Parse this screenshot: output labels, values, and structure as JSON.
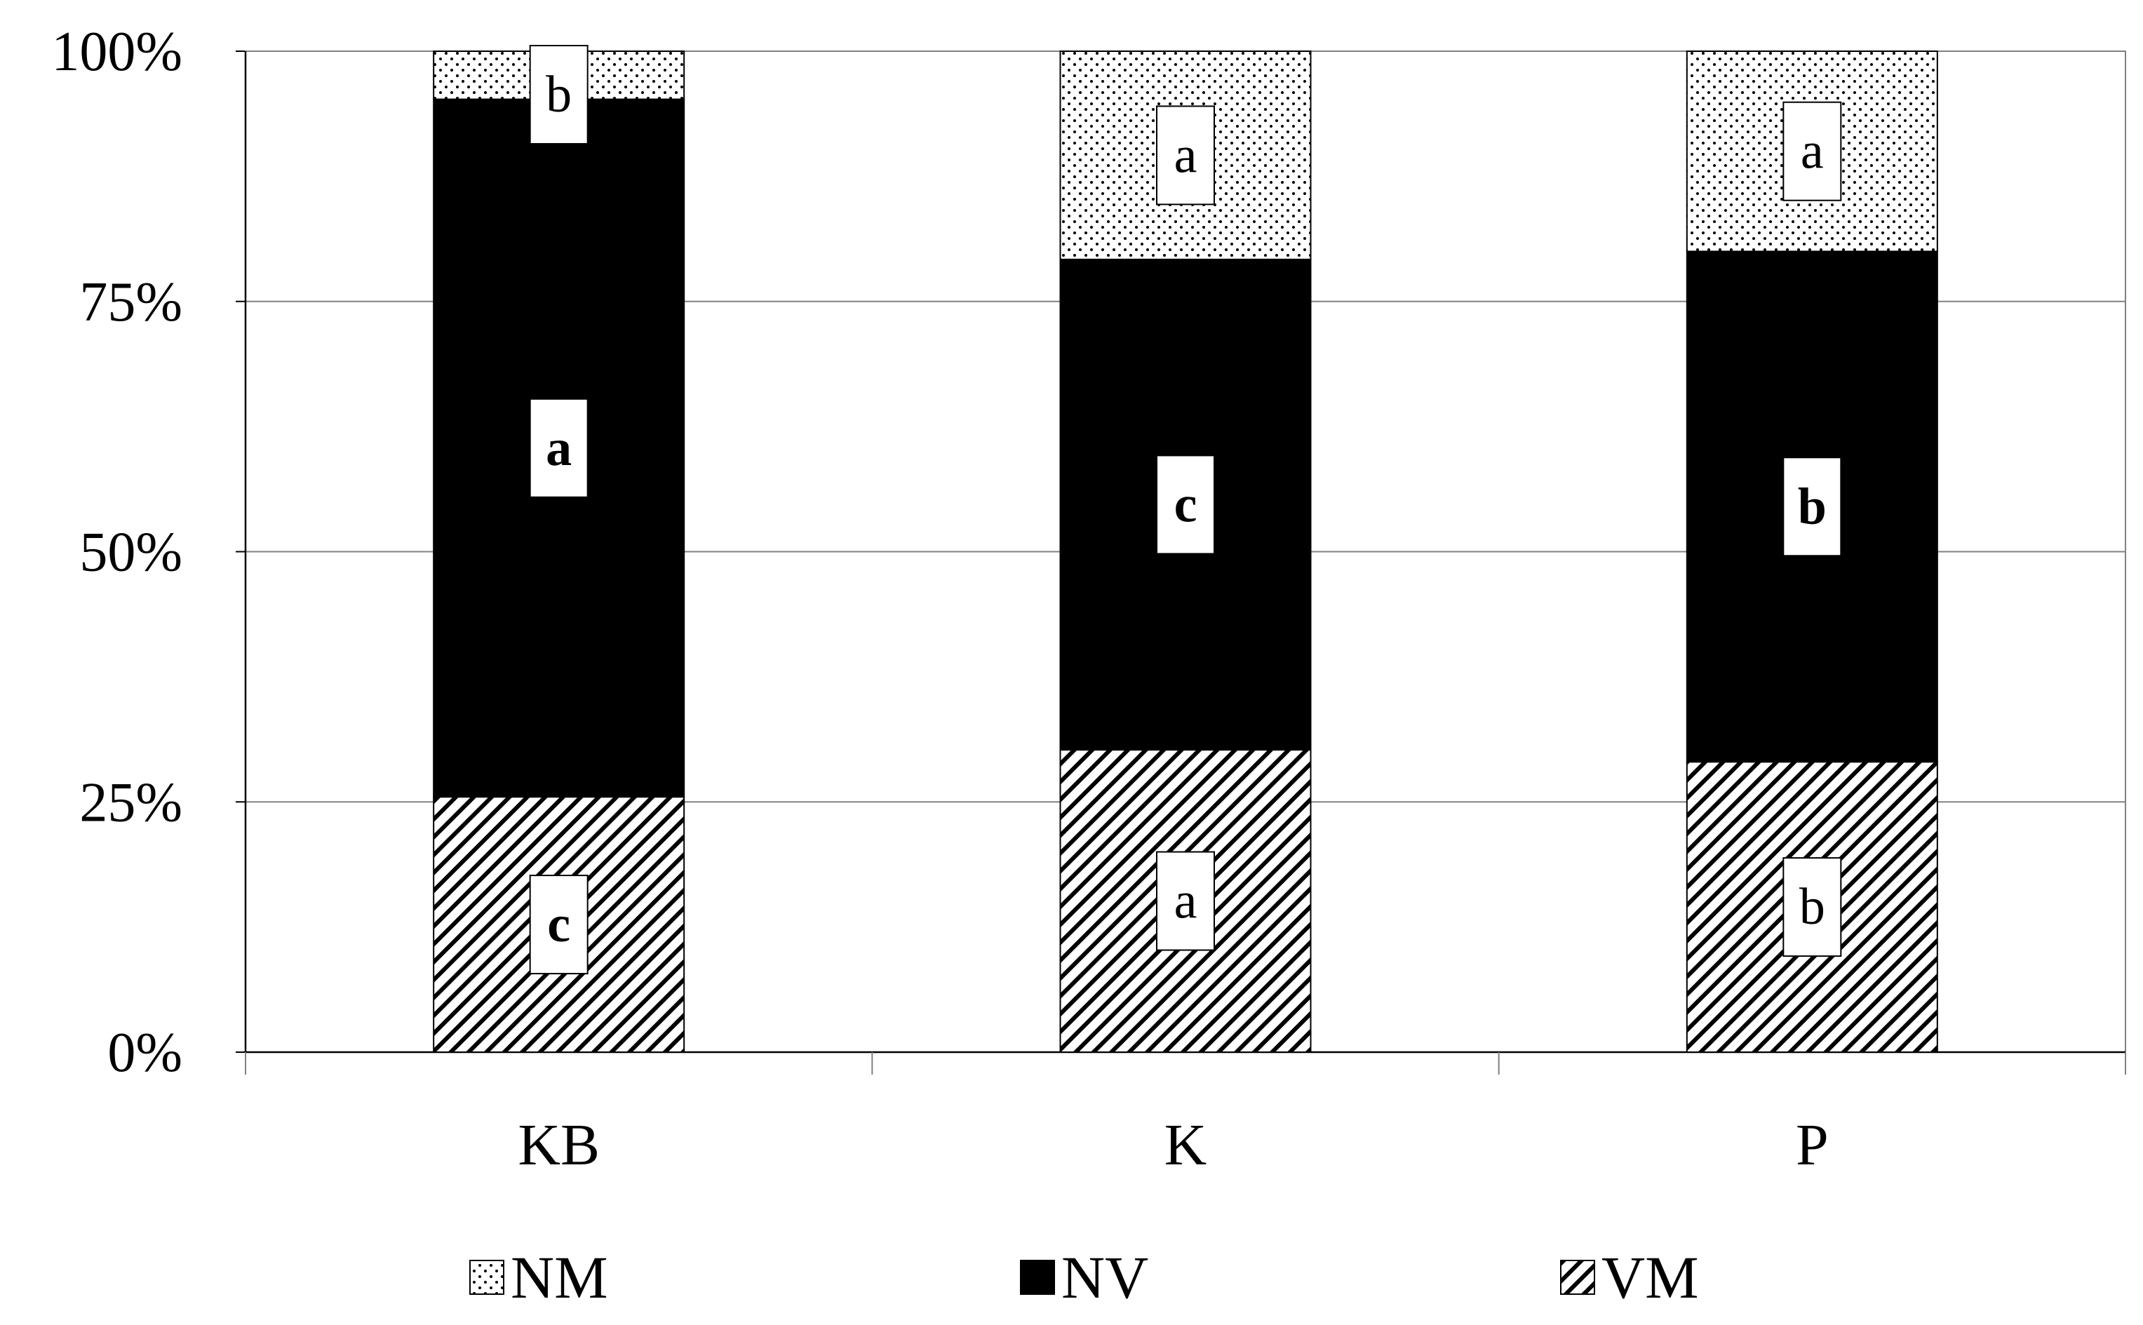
{
  "chart_data": {
    "type": "bar",
    "stacked": true,
    "categories": [
      "KB",
      "K",
      "P"
    ],
    "series": [
      {
        "name": "VM",
        "pattern": "diagonal-hatch",
        "values": [
          25.5,
          30.2,
          29.0
        ],
        "letters": [
          "c",
          "a",
          "b"
        ],
        "letters_bold": [
          true,
          false,
          false
        ]
      },
      {
        "name": "NV",
        "pattern": "solid-black",
        "values": [
          69.7,
          49.0,
          51.0
        ],
        "letters": [
          "a",
          "c",
          "b"
        ],
        "letters_bold": [
          true,
          true,
          true
        ]
      },
      {
        "name": "NM",
        "pattern": "dotted",
        "values": [
          4.8,
          20.8,
          20.0
        ],
        "letters": [
          "b",
          "a",
          "a"
        ],
        "letters_bold": [
          false,
          false,
          false
        ]
      }
    ],
    "ylim": [
      0,
      100
    ],
    "yticks": [
      "0%",
      "25%",
      "50%",
      "75%",
      "100%"
    ],
    "grid": true,
    "legend": {
      "position": "bottom",
      "order": [
        "NM",
        "NV",
        "VM"
      ]
    },
    "title": "",
    "xlabel": "",
    "ylabel": ""
  }
}
